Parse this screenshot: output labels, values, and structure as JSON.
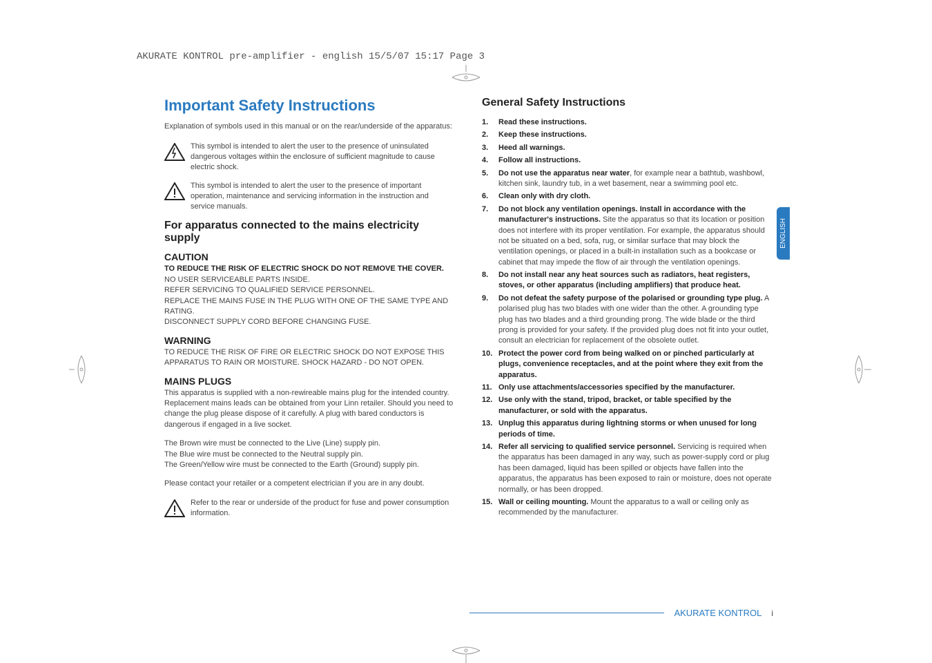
{
  "header": "AKURATE KONTROL pre-amplifier - english  15/5/07  15:17  Page 3",
  "tab": "ENGLISH",
  "left": {
    "title": "Important Safety Instructions",
    "intro": "Explanation of symbols used in this manual or on the rear/underside of the apparatus:",
    "sym1": "This symbol is intended to alert the user to the presence of uninsulated dangerous voltages within the enclosure of sufficient magnitude to cause electric shock.",
    "sym2": "This symbol is intended to alert the user to the presence of important operation, maintenance and servicing information in the instruction and service manuals.",
    "mainsHeading": "For apparatus connected to the mains electricity supply",
    "caution": "CAUTION",
    "cautionBold": "TO REDUCE THE RISK OF ELECTRIC SHOCK DO NOT REMOVE THE COVER.",
    "c1": "NO USER SERVICEABLE PARTS INSIDE.",
    "c2": "REFER SERVICING TO QUALIFIED SERVICE PERSONNEL.",
    "c3": "REPLACE THE MAINS FUSE IN THE PLUG WITH ONE OF THE SAME TYPE AND RATING.",
    "c4": "DISCONNECT SUPPLY CORD BEFORE CHANGING FUSE.",
    "warning": "WARNING",
    "w1": "TO REDUCE THE RISK OF FIRE OR ELECTRIC SHOCK DO NOT EXPOSE THIS APPARATUS TO RAIN OR MOISTURE. SHOCK HAZARD - DO NOT OPEN.",
    "plugs": "MAINS PLUGS",
    "p1": "This apparatus is supplied with a non-rewireable mains plug for the intended country. Replacement mains leads can be obtained from your Linn retailer. Should you need to change the plug please dispose of it carefully. A plug with bared conductors is dangerous if engaged in a live socket.",
    "p2a": "The Brown wire must be connected to the Live (Line) supply pin.",
    "p2b": "The Blue wire must be connected to the Neutral supply pin.",
    "p2c": "The Green/Yellow wire must be connected to the Earth (Ground) supply pin.",
    "p3": "Please contact your retailer or a competent electrician if you are in any doubt.",
    "sym3": "Refer to the rear or underside of the product for fuse and power consumption information."
  },
  "right": {
    "title": "General Safety Instructions",
    "items": [
      {
        "lead": "Read these instructions.",
        "body": ""
      },
      {
        "lead": "Keep these instructions.",
        "body": ""
      },
      {
        "lead": "Heed all warnings.",
        "body": ""
      },
      {
        "lead": "Follow all instructions.",
        "body": ""
      },
      {
        "lead": "Do not use the apparatus near water",
        "body": ", for example near a bathtub, washbowl, kitchen sink, laundry tub, in a wet basement, near a swimming pool etc."
      },
      {
        "lead": "Clean only with dry cloth.",
        "body": ""
      },
      {
        "lead": "Do not block any ventilation openings. Install in accordance with the manufacturer's instructions.",
        "body": " Site the apparatus so that its location or position does not interfere with its proper ventilation. For example, the apparatus should not be situated on a bed, sofa, rug, or similar surface that may block the ventilation openings, or placed in a built-in installation such as a bookcase or cabinet that may impede the flow of air through the ventilation openings."
      },
      {
        "lead": "Do not install near any heat sources such as radiators, heat registers, stoves, or other apparatus (including amplifiers) that produce heat.",
        "body": ""
      },
      {
        "lead": "Do not defeat the safety purpose of the polarised or grounding type plug.",
        "body": " A polarised plug has two blades with one wider than the other. A grounding type plug has two blades and a third grounding prong. The wide blade or the third prong is provided for your safety. If the provided plug does not fit into your outlet, consult an electrician for replacement of the obsolete outlet."
      },
      {
        "lead": "Protect the power cord from being walked on or pinched particularly at plugs, convenience receptacles, and at the point where they exit from the apparatus.",
        "body": ""
      },
      {
        "lead": "Only use attachments/accessories specified by the manufacturer.",
        "body": ""
      },
      {
        "lead": "Use only with the stand, tripod, bracket, or table specified by the manufacturer, or sold with the apparatus.",
        "body": ""
      },
      {
        "lead": "Unplug this apparatus during lightning storms or when unused for long periods of time.",
        "body": ""
      },
      {
        "lead": "Refer all servicing to qualified service personnel.",
        "body": " Servicing is required when the apparatus has been damaged in any way, such as power-supply cord or plug has been damaged, liquid has been spilled or objects have fallen into the apparatus, the apparatus has been exposed to rain or moisture, does not operate normally, or has been dropped."
      },
      {
        "lead": "Wall or ceiling mounting.",
        "body": " Mount the apparatus to a wall or ceiling only as recommended by the manufacturer."
      }
    ]
  },
  "footer": {
    "title": "AKURATE KONTROL",
    "page": "i"
  },
  "colors": {
    "accent": "#2a7ac0",
    "text": "#444444",
    "heading": "#222222"
  }
}
